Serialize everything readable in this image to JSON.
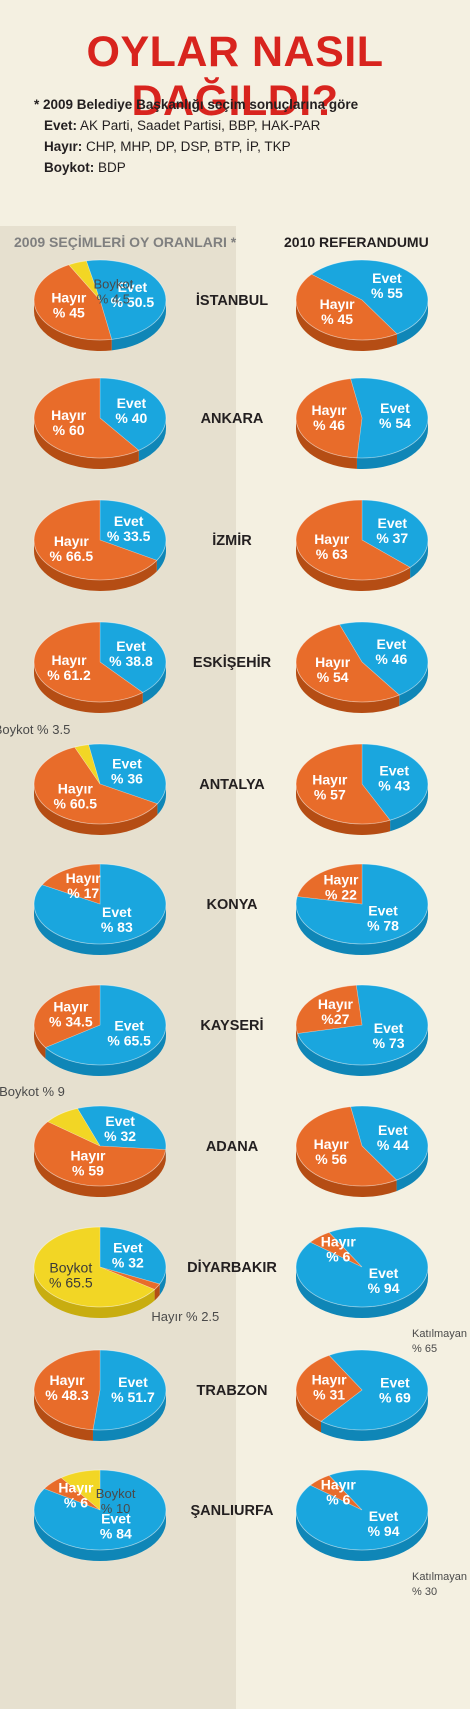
{
  "title": "OYLAR NASIL DAĞILDI?",
  "notes": {
    "intro": "* 2009 Belediye Başkanlığı seçim sonuçlarına göre",
    "rows": [
      {
        "key": "Evet:",
        "value": "AK Parti, Saadet Partisi, BBP, HAK-PAR"
      },
      {
        "key": "Hayır:",
        "value": "CHP, MHP, DP, DSP, BTP, İP, TKP"
      },
      {
        "key": "Boykot:",
        "value": "BDP"
      }
    ]
  },
  "columns": {
    "left": "2009 SEÇİMLERİ OY ORANLARI *",
    "right": "2010 REFERANDUMU"
  },
  "colors": {
    "evet": "#1aa6de",
    "hayir": "#e86c2a",
    "boykot": "#f2d625",
    "title": "#d8241e"
  },
  "chart_data": [
    {
      "type": "pie",
      "city": "İSTANBUL",
      "y2009": [
        {
          "name": "Evet",
          "value": 50.5,
          "label": "% 50.5"
        },
        {
          "name": "Hayır",
          "value": 45,
          "label": "% 45"
        },
        {
          "name": "Boykot",
          "value": 4.5,
          "label": "Boykot\n% 4.5"
        }
      ],
      "y2010": [
        {
          "name": "Evet",
          "value": 55,
          "label": "% 55"
        },
        {
          "name": "Hayır",
          "value": 45,
          "label": "% 45"
        }
      ]
    },
    {
      "type": "pie",
      "city": "ANKARA",
      "y2009": [
        {
          "name": "Evet",
          "value": 40,
          "label": "% 40"
        },
        {
          "name": "Hayır",
          "value": 60,
          "label": "% 60"
        }
      ],
      "y2010": [
        {
          "name": "Evet",
          "value": 54,
          "label": "% 54"
        },
        {
          "name": "Hayır",
          "value": 46,
          "label": "% 46"
        }
      ]
    },
    {
      "type": "pie",
      "city": "İZMİR",
      "y2009": [
        {
          "name": "Evet",
          "value": 33.5,
          "label": "% 33.5"
        },
        {
          "name": "Hayır",
          "value": 66.5,
          "label": "% 66.5"
        }
      ],
      "y2010": [
        {
          "name": "Evet",
          "value": 37,
          "label": "% 37"
        },
        {
          "name": "Hayır",
          "value": 63,
          "label": "% 63"
        }
      ]
    },
    {
      "type": "pie",
      "city": "ESKİŞEHİR",
      "y2009": [
        {
          "name": "Evet",
          "value": 38.8,
          "label": "% 38.8"
        },
        {
          "name": "Hayır",
          "value": 61.2,
          "label": "% 61.2"
        }
      ],
      "y2010": [
        {
          "name": "Evet",
          "value": 46,
          "label": "% 46"
        },
        {
          "name": "Hayır",
          "value": 54,
          "label": "% 54"
        }
      ]
    },
    {
      "type": "pie",
      "city": "ANTALYA",
      "y2009": [
        {
          "name": "Evet",
          "value": 36,
          "label": "% 36"
        },
        {
          "name": "Hayır",
          "value": 60.5,
          "label": "% 60.5"
        },
        {
          "name": "Boykot",
          "value": 3.5,
          "label": "Boykot % 3.5"
        }
      ],
      "y2010": [
        {
          "name": "Evet",
          "value": 43,
          "label": "% 43"
        },
        {
          "name": "Hayır",
          "value": 57,
          "label": "% 57"
        }
      ]
    },
    {
      "type": "pie",
      "city": "KONYA",
      "y2009": [
        {
          "name": "Evet",
          "value": 83,
          "label": "% 83"
        },
        {
          "name": "Hayır",
          "value": 17,
          "label": "% 17"
        }
      ],
      "y2010": [
        {
          "name": "Evet",
          "value": 78,
          "label": "% 78"
        },
        {
          "name": "Hayır",
          "value": 22,
          "label": "% 22"
        }
      ]
    },
    {
      "type": "pie",
      "city": "KAYSERİ",
      "y2009": [
        {
          "name": "Evet",
          "value": 65.5,
          "label": "% 65.5"
        },
        {
          "name": "Hayır",
          "value": 34.5,
          "label": "% 34.5"
        }
      ],
      "y2010": [
        {
          "name": "Evet",
          "value": 73,
          "label": "% 73"
        },
        {
          "name": "Hayır",
          "value": 27,
          "label": "%27"
        }
      ]
    },
    {
      "type": "pie",
      "city": "ADANA",
      "y2009": [
        {
          "name": "Evet",
          "value": 32,
          "label": "% 32"
        },
        {
          "name": "Hayır",
          "value": 59,
          "label": "% 59"
        },
        {
          "name": "Boykot",
          "value": 9,
          "label": "Boykot % 9"
        }
      ],
      "y2010": [
        {
          "name": "Evet",
          "value": 44,
          "label": "% 44"
        },
        {
          "name": "Hayır",
          "value": 56,
          "label": "% 56"
        }
      ]
    },
    {
      "type": "pie",
      "city": "DİYARBAKIR",
      "y2009": [
        {
          "name": "Evet",
          "value": 32,
          "label": "% 32"
        },
        {
          "name": "Hayır",
          "value": 2.5,
          "label": "Hayır % 2.5"
        },
        {
          "name": "Boykot",
          "value": 65.5,
          "label": "Boykot\n% 65.5"
        }
      ],
      "y2010": [
        {
          "name": "Evet",
          "value": 94,
          "label": "% 94"
        },
        {
          "name": "Hayır",
          "value": 6,
          "label": "% 6"
        }
      ],
      "note2010": "Katılmayan\n% 65"
    },
    {
      "type": "pie",
      "city": "TRABZON",
      "y2009": [
        {
          "name": "Evet",
          "value": 51.7,
          "label": "% 51.7"
        },
        {
          "name": "Hayır",
          "value": 48.3,
          "label": "% 48.3"
        }
      ],
      "y2010": [
        {
          "name": "Evet",
          "value": 69,
          "label": "% 69"
        },
        {
          "name": "Hayır",
          "value": 31,
          "label": "% 31"
        }
      ]
    },
    {
      "type": "pie",
      "city": "ŞANLIURFA",
      "y2009": [
        {
          "name": "Evet",
          "value": 84,
          "label": "% 84"
        },
        {
          "name": "Hayır",
          "value": 6,
          "label": "% 6"
        },
        {
          "name": "Boykot",
          "value": 10,
          "label": "Boykot\n% 10"
        }
      ],
      "y2010": [
        {
          "name": "Evet",
          "value": 94,
          "label": "% 94"
        },
        {
          "name": "Hayır",
          "value": 6,
          "label": "% 6"
        }
      ],
      "note2010": "Katılmayan\n% 30"
    }
  ]
}
